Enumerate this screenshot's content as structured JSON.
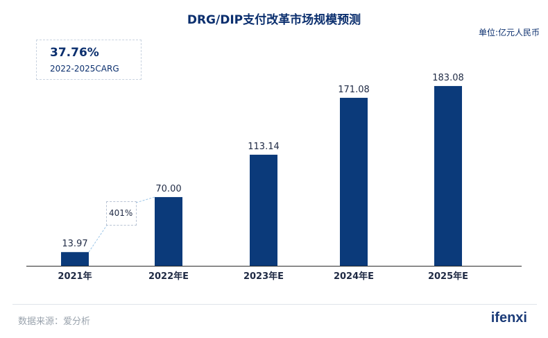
{
  "title": "DRG/DIP支付改革市场规模预测",
  "unit": "单位:亿元人民币",
  "cagr": {
    "value": "37.76%",
    "label": "2022-2025CARG"
  },
  "growth_annotation": "401%",
  "source": "数据来源：爱分析",
  "logo": "ifenxi",
  "colors": {
    "bar": "#0b3a7a",
    "title": "#0b2f6e",
    "axis": "#2b2b2b",
    "annotation_line": "#9ec7e8"
  },
  "chart_data": {
    "type": "bar",
    "title": "DRG/DIP支付改革市场规模预测",
    "xlabel": "",
    "ylabel": "",
    "unit": "亿元人民币",
    "categories": [
      "2021年",
      "2022年E",
      "2023年E",
      "2024年E",
      "2025年E"
    ],
    "values": [
      13.97,
      70.0,
      113.14,
      171.08,
      183.08
    ],
    "value_labels": [
      "13.97",
      "70.00",
      "113.14",
      "171.08",
      "183.08"
    ],
    "ylim": [
      0,
      200
    ],
    "grid": false,
    "legend": "none"
  }
}
